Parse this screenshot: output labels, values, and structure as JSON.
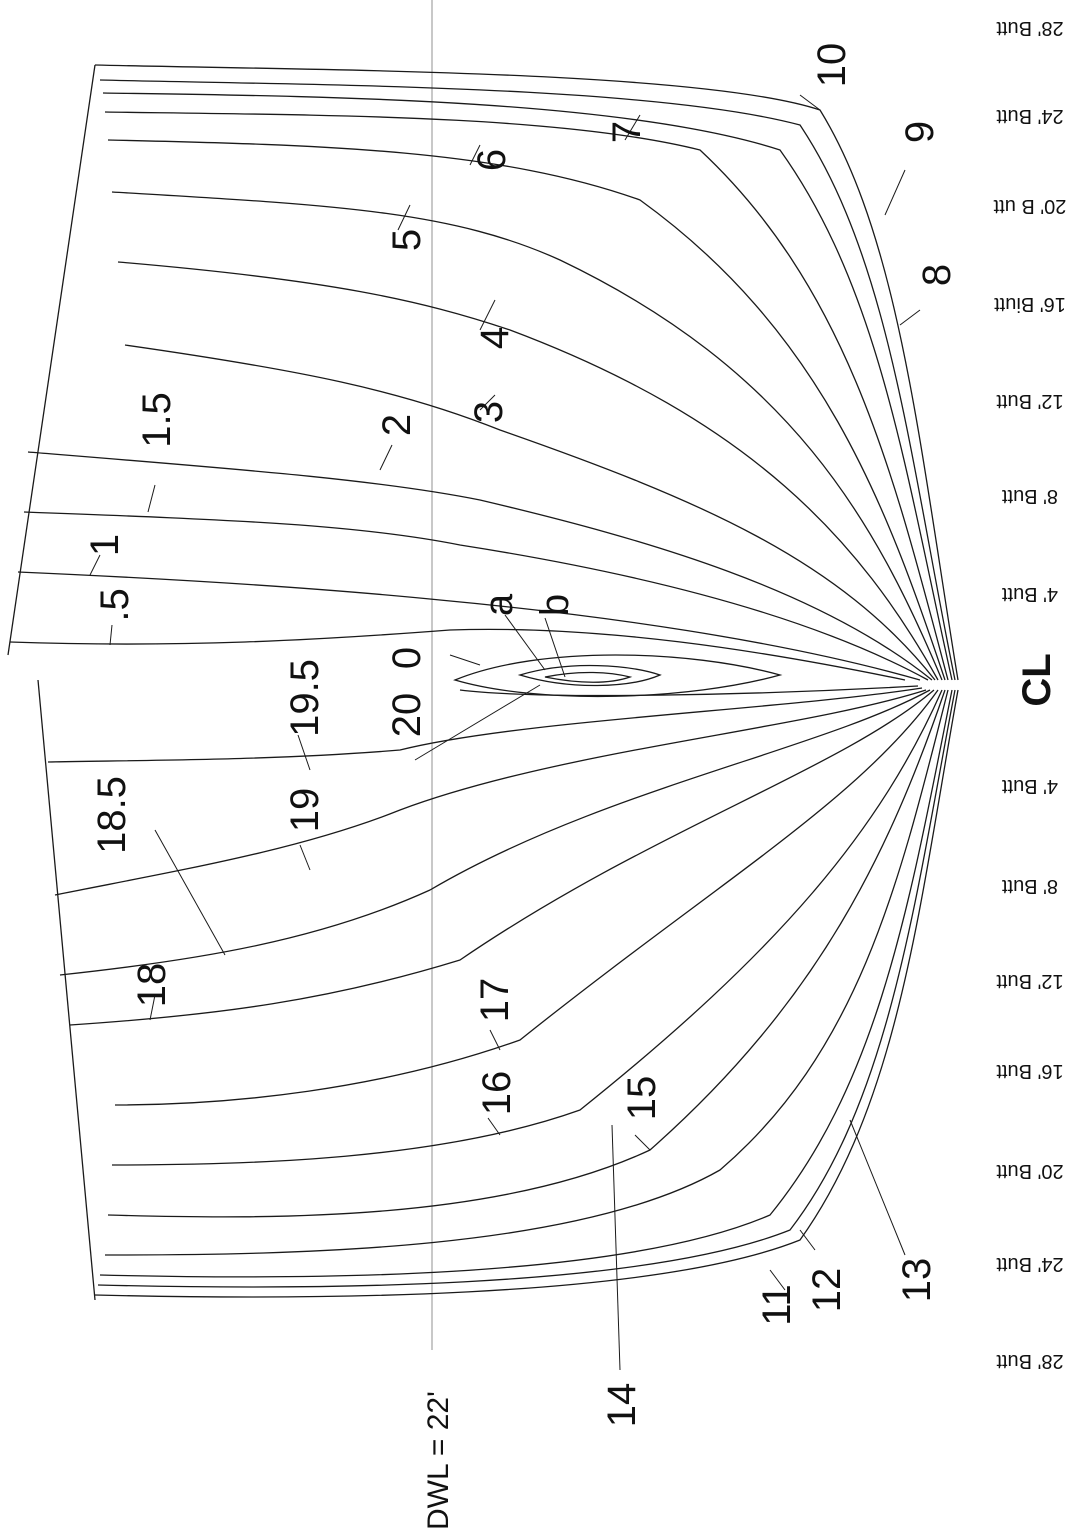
{
  "waterline_label": "DWL = 22'",
  "centerline_label": "CL",
  "butt_labels": [
    "28' Butt",
    "24' Butt",
    "20' B utt",
    "16' Biutt",
    "12' Butt",
    "8' Butt",
    "4' Butt",
    "4' Butt",
    "8' Butt",
    "12' Butt",
    "16' Butt",
    "20' Butt",
    "24' Butt",
    "28' Butt"
  ],
  "forward_station_labels": [
    "0",
    "a",
    "b",
    ".5",
    "1",
    "1.5",
    "2",
    "3",
    "4",
    "5",
    "6",
    "7",
    "8",
    "9",
    "10"
  ],
  "aft_station_labels": [
    "20",
    "19.5",
    "19",
    "18.5",
    "18",
    "17",
    "16",
    "15",
    "14",
    "11",
    "12",
    "13"
  ]
}
